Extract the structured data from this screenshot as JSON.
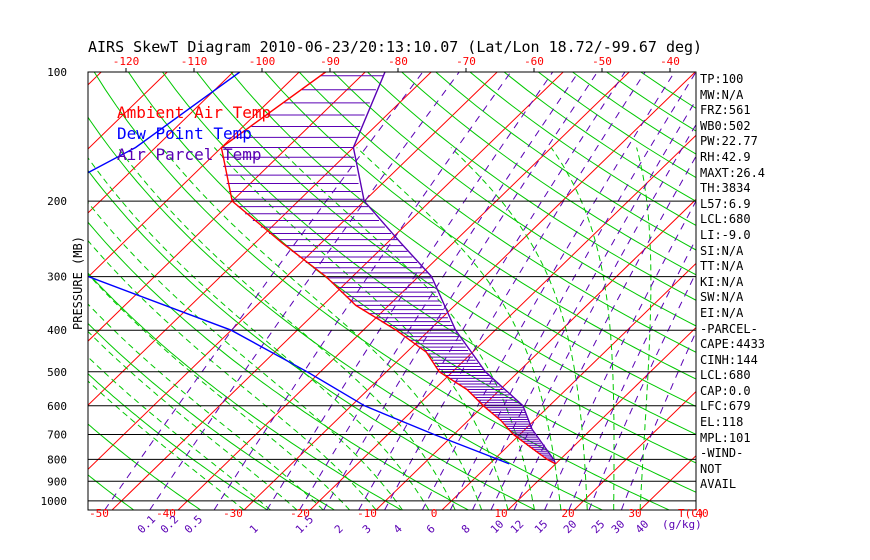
{
  "chart_data": {
    "type": "skewt",
    "title": "AIRS SkewT Diagram 2010-06-23/20:13:10.07 (Lat/Lon 18.72/-99.67 deg)",
    "ylabel": "PRESSURE (MB)",
    "top_axis_ticks": [
      "-120",
      "-110",
      "-100",
      "-90",
      "-80",
      "-70",
      "-60",
      "-50",
      "-40"
    ],
    "bottom_axis_ticks": [
      "-50",
      "-40",
      "-30",
      "-20",
      "-10",
      "0",
      "10",
      "20",
      "30",
      "40"
    ],
    "bottom_axis_label": "T(C)",
    "mixing_ratio_ticks": [
      "0.1",
      "0.2",
      "0.5",
      "1",
      "1.5",
      "2",
      "3",
      "4",
      "6",
      "8",
      "10",
      "12",
      "15",
      "20",
      "25",
      "30",
      "40"
    ],
    "mixing_ratio_label": "(g/kg)",
    "pressure_ticks": [
      "100",
      "200",
      "300",
      "400",
      "500",
      "600",
      "700",
      "800",
      "900",
      "1000"
    ],
    "legend": [
      {
        "name": "Ambient Air Temp",
        "color": "#ff0000"
      },
      {
        "name": "Dew Point Temp",
        "color": "#0000ff"
      },
      {
        "name": "Air Parcel Temp",
        "color": "#5a00b4"
      }
    ],
    "series": [
      {
        "name": "Ambient Air Temp",
        "points": [
          [
            100,
            -76
          ],
          [
            150,
            -80
          ],
          [
            200,
            -70
          ],
          [
            250,
            -56
          ],
          [
            300,
            -44
          ],
          [
            350,
            -35
          ],
          [
            400,
            -25
          ],
          [
            450,
            -17
          ],
          [
            500,
            -12
          ],
          [
            550,
            -5
          ],
          [
            600,
            0
          ],
          [
            650,
            5
          ],
          [
            700,
            9
          ],
          [
            800,
            18
          ],
          [
            820,
            20
          ]
        ]
      },
      {
        "name": "Dew Point Temp",
        "points": [
          [
            100,
            -89
          ],
          [
            150,
            -93
          ],
          [
            200,
            -100
          ],
          [
            250,
            -108
          ],
          [
            300,
            -80
          ],
          [
            400,
            -50
          ],
          [
            500,
            -32
          ],
          [
            600,
            -18
          ],
          [
            700,
            -3
          ],
          [
            780,
            8
          ],
          [
            820,
            13
          ]
        ]
      },
      {
        "name": "Air Parcel Temp",
        "points": [
          [
            100,
            -67
          ],
          [
            150,
            -60
          ],
          [
            200,
            -50
          ],
          [
            250,
            -38
          ],
          [
            300,
            -28
          ],
          [
            400,
            -16
          ],
          [
            500,
            -5
          ],
          [
            600,
            6
          ],
          [
            680,
            11
          ],
          [
            800,
            19
          ],
          [
            820,
            20
          ]
        ]
      }
    ]
  },
  "sidebar": [
    "TP:100",
    "MW:N/A",
    "FRZ:561",
    "WB0:502",
    "PW:22.77",
    "RH:42.9",
    "MAXT:26.4",
    "TH:3834",
    "L57:6.9",
    "LCL:680",
    "LI:-9.0",
    "SI:N/A",
    "TT:N/A",
    "KI:N/A",
    "SW:N/A",
    "EI:N/A",
    "-PARCEL-",
    "CAPE:4433",
    "CINH:144",
    "LCL:680",
    "CAP:0.0",
    "LFC:679",
    "EL:118",
    "MPL:101",
    "-WIND-",
    " NOT",
    " AVAIL"
  ],
  "colors": {
    "isotherm": "#ff0000",
    "dry_adiabat": "#00c800",
    "moist_adiabat": "#00c800",
    "mixing_ratio": "#5a00b4",
    "hatch": "#5a00b4",
    "axis": "#000000"
  }
}
